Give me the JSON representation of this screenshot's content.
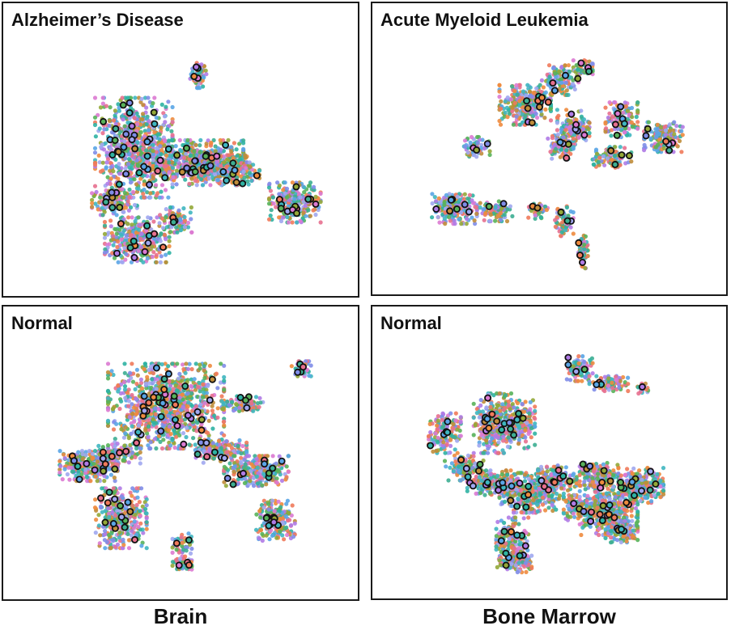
{
  "chart_data": [
    {
      "type": "scatter",
      "title": "Alzheimer’s Disease",
      "group": "Brain",
      "highlight_style": "black-outlined points",
      "clusters": [
        {
          "cx": 0.55,
          "cy": 0.84,
          "rx": 0.025,
          "ry": 0.05,
          "n": 60,
          "h": 4
        },
        {
          "cx": 0.29,
          "cy": 0.33,
          "rx": 0.07,
          "ry": 0.05,
          "n": 120,
          "h": 6
        },
        {
          "cx": 0.35,
          "cy": 0.55,
          "rx": 0.12,
          "ry": 0.2,
          "n": 700,
          "h": 30
        },
        {
          "cx": 0.55,
          "cy": 0.49,
          "rx": 0.14,
          "ry": 0.09,
          "n": 550,
          "h": 22
        },
        {
          "cx": 0.66,
          "cy": 0.46,
          "rx": 0.08,
          "ry": 0.06,
          "n": 220,
          "h": 8
        },
        {
          "cx": 0.85,
          "cy": 0.33,
          "rx": 0.08,
          "ry": 0.08,
          "n": 260,
          "h": 12
        },
        {
          "cx": 0.36,
          "cy": 0.18,
          "rx": 0.1,
          "ry": 0.09,
          "n": 320,
          "h": 12
        },
        {
          "cx": 0.48,
          "cy": 0.26,
          "rx": 0.05,
          "ry": 0.05,
          "n": 90,
          "h": 3
        }
      ]
    },
    {
      "type": "scatter",
      "title": "Acute Myeloid Leukemia",
      "group": "Bone Marrow",
      "highlight_style": "black-outlined points",
      "clusters": [
        {
          "cx": 0.6,
          "cy": 0.87,
          "rx": 0.03,
          "ry": 0.03,
          "n": 50,
          "h": 3
        },
        {
          "cx": 0.42,
          "cy": 0.72,
          "rx": 0.08,
          "ry": 0.08,
          "n": 280,
          "h": 10
        },
        {
          "cx": 0.57,
          "cy": 0.63,
          "rx": 0.05,
          "ry": 0.07,
          "n": 140,
          "h": 5
        },
        {
          "cx": 0.53,
          "cy": 0.82,
          "rx": 0.06,
          "ry": 0.06,
          "n": 120,
          "h": 4
        },
        {
          "cx": 0.27,
          "cy": 0.55,
          "rx": 0.04,
          "ry": 0.04,
          "n": 60,
          "h": 3
        },
        {
          "cx": 0.53,
          "cy": 0.55,
          "rx": 0.04,
          "ry": 0.05,
          "n": 90,
          "h": 4
        },
        {
          "cx": 0.72,
          "cy": 0.66,
          "rx": 0.05,
          "ry": 0.07,
          "n": 150,
          "h": 6
        },
        {
          "cx": 0.85,
          "cy": 0.59,
          "rx": 0.06,
          "ry": 0.06,
          "n": 160,
          "h": 6
        },
        {
          "cx": 0.69,
          "cy": 0.51,
          "rx": 0.06,
          "ry": 0.04,
          "n": 90,
          "h": 3
        },
        {
          "cx": 0.7,
          "cy": 0.48,
          "rx": 0.02,
          "ry": 0.02,
          "n": 20,
          "h": 1
        },
        {
          "cx": 0.2,
          "cy": 0.3,
          "rx": 0.07,
          "ry": 0.06,
          "n": 200,
          "h": 7
        },
        {
          "cx": 0.33,
          "cy": 0.29,
          "rx": 0.05,
          "ry": 0.04,
          "n": 90,
          "h": 2
        },
        {
          "cx": 0.46,
          "cy": 0.29,
          "rx": 0.03,
          "ry": 0.03,
          "n": 40,
          "h": 2
        },
        {
          "cx": 0.54,
          "cy": 0.25,
          "rx": 0.03,
          "ry": 0.06,
          "n": 70,
          "h": 3
        },
        {
          "cx": 0.6,
          "cy": 0.13,
          "rx": 0.015,
          "ry": 0.07,
          "n": 80,
          "h": 3
        }
      ]
    },
    {
      "type": "scatter",
      "title": "Normal",
      "group": "Brain",
      "highlight_style": "black-outlined points",
      "clusters": [
        {
          "cx": 0.87,
          "cy": 0.88,
          "rx": 0.03,
          "ry": 0.03,
          "n": 50,
          "h": 4
        },
        {
          "cx": 0.45,
          "cy": 0.73,
          "rx": 0.18,
          "ry": 0.17,
          "n": 900,
          "h": 40
        },
        {
          "cx": 0.62,
          "cy": 0.55,
          "rx": 0.08,
          "ry": 0.05,
          "n": 150,
          "h": 6
        },
        {
          "cx": 0.73,
          "cy": 0.47,
          "rx": 0.1,
          "ry": 0.06,
          "n": 250,
          "h": 10
        },
        {
          "cx": 0.7,
          "cy": 0.74,
          "rx": 0.06,
          "ry": 0.03,
          "n": 80,
          "h": 4
        },
        {
          "cx": 0.3,
          "cy": 0.54,
          "rx": 0.07,
          "ry": 0.04,
          "n": 120,
          "h": 5
        },
        {
          "cx": 0.21,
          "cy": 0.49,
          "rx": 0.09,
          "ry": 0.06,
          "n": 260,
          "h": 10
        },
        {
          "cx": 0.31,
          "cy": 0.28,
          "rx": 0.08,
          "ry": 0.12,
          "n": 330,
          "h": 14
        },
        {
          "cx": 0.79,
          "cy": 0.27,
          "rx": 0.06,
          "ry": 0.08,
          "n": 200,
          "h": 8
        },
        {
          "cx": 0.5,
          "cy": 0.17,
          "rx": 0.03,
          "ry": 0.05,
          "n": 40,
          "h": 2
        },
        {
          "cx": 0.5,
          "cy": 0.1,
          "rx": 0.03,
          "ry": 0.03,
          "n": 40,
          "h": 3
        }
      ]
    },
    {
      "type": "scatter",
      "title": "Normal",
      "group": "Bone Marrow",
      "highlight_style": "black-outlined points",
      "clusters": [
        {
          "cx": 0.59,
          "cy": 0.88,
          "rx": 0.04,
          "ry": 0.05,
          "n": 100,
          "h": 4
        },
        {
          "cx": 0.68,
          "cy": 0.82,
          "rx": 0.06,
          "ry": 0.03,
          "n": 90,
          "h": 3
        },
        {
          "cx": 0.79,
          "cy": 0.8,
          "rx": 0.02,
          "ry": 0.02,
          "n": 20,
          "h": 1
        },
        {
          "cx": 0.32,
          "cy": 0.66,
          "rx": 0.06,
          "ry": 0.12,
          "n": 280,
          "h": 10
        },
        {
          "cx": 0.4,
          "cy": 0.66,
          "rx": 0.05,
          "ry": 0.1,
          "n": 200,
          "h": 7
        },
        {
          "cx": 0.17,
          "cy": 0.62,
          "rx": 0.05,
          "ry": 0.08,
          "n": 150,
          "h": 5
        },
        {
          "cx": 0.23,
          "cy": 0.48,
          "rx": 0.06,
          "ry": 0.05,
          "n": 120,
          "h": 5
        },
        {
          "cx": 0.32,
          "cy": 0.42,
          "rx": 0.08,
          "ry": 0.05,
          "n": 230,
          "h": 9
        },
        {
          "cx": 0.44,
          "cy": 0.38,
          "rx": 0.1,
          "ry": 0.08,
          "n": 320,
          "h": 12
        },
        {
          "cx": 0.52,
          "cy": 0.44,
          "rx": 0.06,
          "ry": 0.05,
          "n": 130,
          "h": 5
        },
        {
          "cx": 0.65,
          "cy": 0.45,
          "rx": 0.06,
          "ry": 0.05,
          "n": 160,
          "h": 6
        },
        {
          "cx": 0.58,
          "cy": 0.32,
          "rx": 0.04,
          "ry": 0.05,
          "n": 90,
          "h": 3
        },
        {
          "cx": 0.68,
          "cy": 0.31,
          "rx": 0.09,
          "ry": 0.1,
          "n": 380,
          "h": 14
        },
        {
          "cx": 0.78,
          "cy": 0.41,
          "rx": 0.07,
          "ry": 0.07,
          "n": 230,
          "h": 10
        },
        {
          "cx": 0.72,
          "cy": 0.23,
          "rx": 0.05,
          "ry": 0.05,
          "n": 120,
          "h": 4
        },
        {
          "cx": 0.38,
          "cy": 0.18,
          "rx": 0.05,
          "ry": 0.1,
          "n": 180,
          "h": 7
        },
        {
          "cx": 0.39,
          "cy": 0.1,
          "rx": 0.05,
          "ry": 0.04,
          "n": 100,
          "h": 4
        }
      ]
    }
  ],
  "column_labels": {
    "brain": "Brain",
    "bone_marrow": "Bone Marrow"
  },
  "palette": [
    "#e7708f",
    "#f07a5b",
    "#db7ad2",
    "#b07be6",
    "#7f8de8",
    "#5aa5e6",
    "#3fb6c0",
    "#3dae92",
    "#58b25a",
    "#94a838",
    "#c08d3a",
    "#ee8b3e",
    "#2fb3a3",
    "#a0a7f0"
  ],
  "highlight_ring": "#111111"
}
